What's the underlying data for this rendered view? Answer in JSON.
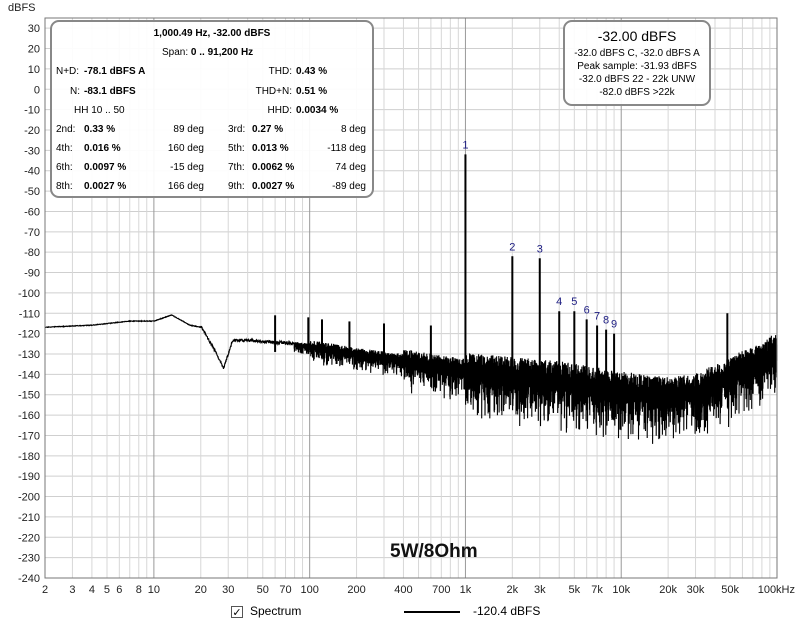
{
  "chart_data": {
    "type": "line",
    "ylabel": "dBFS",
    "xlim": [
      2,
      100000
    ],
    "ylim": [
      -240,
      35
    ],
    "x_scale": "log",
    "grid": true,
    "y_ticks": [
      30,
      20,
      10,
      0,
      -10,
      -20,
      -30,
      -40,
      -50,
      -60,
      -70,
      -80,
      -90,
      -100,
      -110,
      -120,
      -130,
      -140,
      -150,
      -160,
      -170,
      -180,
      -190,
      -200,
      -210,
      -220,
      -230,
      -240
    ],
    "x_ticks": [
      {
        "v": 2,
        "t": "2"
      },
      {
        "v": 3,
        "t": "3"
      },
      {
        "v": 4,
        "t": "4"
      },
      {
        "v": 5,
        "t": "5"
      },
      {
        "v": 6,
        "t": "6"
      },
      {
        "v": 8,
        "t": "8"
      },
      {
        "v": 10,
        "t": "10"
      },
      {
        "v": 20,
        "t": "20"
      },
      {
        "v": 30,
        "t": "30"
      },
      {
        "v": 50,
        "t": "50"
      },
      {
        "v": 70,
        "t": "70"
      },
      {
        "v": 100,
        "t": "100"
      },
      {
        "v": 200,
        "t": "200"
      },
      {
        "v": 400,
        "t": "400"
      },
      {
        "v": 700,
        "t": "700"
      },
      {
        "v": 1000,
        "t": "1k"
      },
      {
        "v": 2000,
        "t": "2k"
      },
      {
        "v": 3000,
        "t": "3k"
      },
      {
        "v": 5000,
        "t": "5k"
      },
      {
        "v": 7000,
        "t": "7k"
      },
      {
        "v": 10000,
        "t": "10k"
      },
      {
        "v": 20000,
        "t": "20k"
      },
      {
        "v": 30000,
        "t": "30k"
      },
      {
        "v": 50000,
        "t": "50k"
      },
      {
        "v": 100000,
        "t": "100kHz"
      }
    ],
    "harmonic_markers": [
      {
        "label": "1",
        "x": 1000,
        "y": -32
      },
      {
        "label": "2",
        "x": 2000,
        "y": -82
      },
      {
        "label": "3",
        "x": 3000,
        "y": -83
      },
      {
        "label": "4",
        "x": 4000,
        "y": -109
      },
      {
        "label": "5",
        "x": 5000,
        "y": -109
      },
      {
        "label": "6",
        "x": 6000,
        "y": -113
      },
      {
        "label": "7",
        "x": 7000,
        "y": -116
      },
      {
        "label": "8",
        "x": 8000,
        "y": -118
      },
      {
        "label": "9",
        "x": 9000,
        "y": -120
      }
    ],
    "series": [
      {
        "legend_value": "-120.4 dBFS",
        "color": "#000000",
        "envelope": [
          [
            2,
            -117
          ],
          [
            4,
            -116
          ],
          [
            7,
            -114
          ],
          [
            10,
            -114
          ],
          [
            13,
            -111
          ],
          [
            17,
            -116
          ],
          [
            20,
            -117
          ],
          [
            25,
            -130
          ],
          [
            28,
            -138
          ],
          [
            32,
            -124
          ],
          [
            40,
            -124
          ],
          [
            60,
            -125
          ],
          [
            100,
            -126
          ],
          [
            200,
            -130
          ],
          [
            400,
            -133
          ],
          [
            700,
            -136
          ],
          [
            1000,
            -138
          ],
          [
            2000,
            -140
          ],
          [
            4000,
            -142
          ],
          [
            7000,
            -145
          ],
          [
            10000,
            -147
          ],
          [
            20000,
            -150
          ],
          [
            30000,
            -148
          ],
          [
            50000,
            -140
          ],
          [
            80000,
            -132
          ],
          [
            100000,
            -128
          ]
        ],
        "spikes": [
          {
            "x": 1000,
            "y": -32
          },
          {
            "x": 2000,
            "y": -82
          },
          {
            "x": 3000,
            "y": -83
          },
          {
            "x": 4000,
            "y": -109
          },
          {
            "x": 5000,
            "y": -109
          },
          {
            "x": 6000,
            "y": -113
          },
          {
            "x": 7000,
            "y": -116
          },
          {
            "x": 8000,
            "y": -118
          },
          {
            "x": 9000,
            "y": -120
          },
          {
            "x": 60,
            "y": -111
          },
          {
            "x": 98,
            "y": -112
          },
          {
            "x": 120,
            "y": -113
          },
          {
            "x": 180,
            "y": -114
          },
          {
            "x": 300,
            "y": -115
          },
          {
            "x": 600,
            "y": -116
          },
          {
            "x": 48000,
            "y": -110
          }
        ]
      }
    ]
  },
  "stats": {
    "title": "1,000.49 Hz, -32.00 dBFS",
    "span_label": "Span:",
    "span_value": "0 .. 91,200 Hz",
    "nd_label": "N+D:",
    "nd_value": "-78.1 dBFS A",
    "thd_label": "THD:",
    "thd_value": "0.43 %",
    "n_label": "N:",
    "n_value": "-83.1 dBFS",
    "thdn_label": "THD+N:",
    "thdn_value": "0.51 %",
    "hh_label": "HH 10 .. 50",
    "hhd_label": "HHD:",
    "hhd_value": "0.0034 %",
    "harmonics": [
      {
        "name": "2nd:",
        "pct": "0.33 %",
        "deg": "89 deg"
      },
      {
        "name": "3rd:",
        "pct": "0.27 %",
        "deg": "8 deg"
      },
      {
        "name": "4th:",
        "pct": "0.016 %",
        "deg": "160 deg"
      },
      {
        "name": "5th:",
        "pct": "0.013 %",
        "deg": "-118 deg"
      },
      {
        "name": "6th:",
        "pct": "0.0097 %",
        "deg": "-15 deg"
      },
      {
        "name": "7th:",
        "pct": "0.0062 %",
        "deg": "74 deg"
      },
      {
        "name": "8th:",
        "pct": "0.0027 %",
        "deg": "166 deg"
      },
      {
        "name": "9th:",
        "pct": "0.0027 %",
        "deg": "-89 deg"
      }
    ]
  },
  "peak_box": {
    "title": "-32.00 dBFS",
    "line1": "-32.0 dBFS C, -32.0 dBFS A",
    "line2": "Peak sample: -31.93 dBFS",
    "line3": "-32.0 dBFS 22 - 22k UNW",
    "line4": "-82.0 dBFS >22k"
  },
  "annotation": "5W/8Ohm",
  "legend": {
    "checkbox_label": "Spectrum",
    "checked": true,
    "value": "-120.4 dBFS"
  }
}
